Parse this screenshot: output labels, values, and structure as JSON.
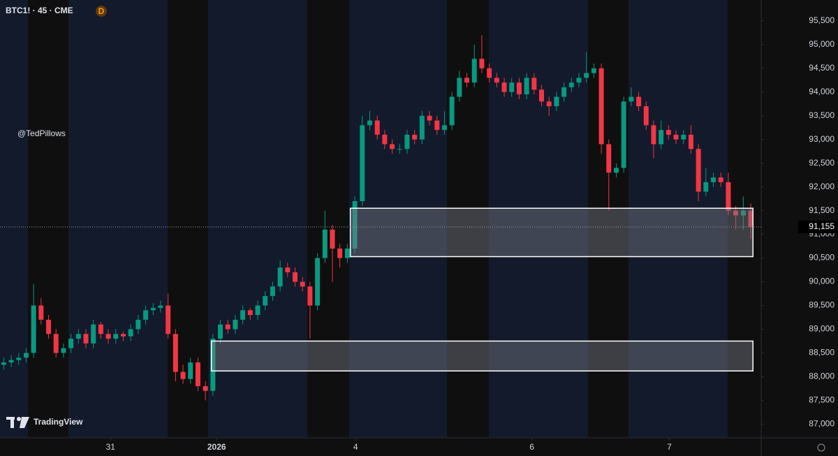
{
  "chart_data": {
    "type": "candlestick",
    "title": "BTC1! · 45 · CME",
    "badge": "D",
    "watermark": "@TedPillows",
    "brand": "TradingView",
    "up_color": "#089981",
    "down_color": "#f23645",
    "open": [
      88250,
      88300,
      88350,
      88400,
      88500,
      89500,
      89200,
      88900,
      88500,
      88600,
      88800,
      88900,
      88700,
      89100,
      88900,
      88800,
      88900,
      88850,
      89000,
      89200,
      89400,
      89450,
      89500,
      88900,
      88100,
      87950,
      88300,
      87800,
      87700,
      88800,
      89100,
      89000,
      89200,
      89400,
      89300,
      89500,
      89700,
      89900,
      90300,
      90200,
      90000,
      89900,
      89500,
      90500,
      91100,
      90700,
      90500,
      90700,
      91700,
      93300,
      93400,
      93100,
      92900,
      92800,
      92800,
      93100,
      93000,
      93500,
      93400,
      93200,
      93300,
      93900,
      94300,
      94200,
      94700,
      94500,
      94300,
      94200,
      94000,
      94200,
      93950,
      94300,
      94050,
      93800,
      93700,
      93900,
      94100,
      94200,
      94300,
      94400,
      94500,
      92900,
      92300,
      92400,
      93800,
      93900,
      93700,
      93300,
      92900,
      93200,
      93100,
      93000,
      93100,
      92800,
      91900,
      92100,
      92200,
      92100,
      91500,
      91400,
      91500
    ],
    "high": [
      88400,
      88450,
      88500,
      88600,
      89950,
      89650,
      89300,
      89000,
      88700,
      88900,
      89000,
      89000,
      89200,
      89150,
      89000,
      89000,
      88950,
      89100,
      89300,
      89500,
      89550,
      89600,
      89750,
      89000,
      88250,
      88400,
      88400,
      87900,
      88900,
      89200,
      89200,
      89300,
      89500,
      89450,
      89600,
      89800,
      90000,
      90450,
      90400,
      90300,
      90100,
      90000,
      90600,
      91500,
      91200,
      90800,
      90800,
      91800,
      93500,
      93600,
      93500,
      93200,
      93000,
      92900,
      93200,
      93200,
      93600,
      93600,
      93500,
      93600,
      94000,
      94450,
      94400,
      95000,
      95200,
      94600,
      94400,
      94300,
      94300,
      94300,
      94400,
      94400,
      94150,
      93900,
      94000,
      94200,
      94300,
      94400,
      94850,
      94600,
      94600,
      93000,
      92500,
      93900,
      94100,
      94000,
      93800,
      93400,
      93400,
      93300,
      93200,
      93200,
      93300,
      92900,
      92400,
      92300,
      92300,
      92300,
      91600,
      91800,
      91650
    ],
    "low": [
      88150,
      88200,
      88250,
      88300,
      88400,
      89100,
      88800,
      88400,
      88400,
      88500,
      88700,
      88600,
      88600,
      88800,
      88700,
      88700,
      88750,
      88750,
      88900,
      89100,
      89300,
      89350,
      88800,
      87900,
      87850,
      87850,
      87700,
      87500,
      87600,
      88700,
      88900,
      88900,
      89100,
      89200,
      89200,
      89400,
      89600,
      89800,
      90100,
      89900,
      89800,
      88800,
      89400,
      90400,
      90000,
      90300,
      90400,
      90600,
      91600,
      93200,
      93000,
      92800,
      92700,
      92700,
      92700,
      92900,
      92900,
      93300,
      93100,
      93100,
      93200,
      93800,
      94100,
      94100,
      94400,
      94200,
      94100,
      93900,
      93900,
      93850,
      93850,
      93950,
      93700,
      93500,
      93600,
      93800,
      94000,
      94100,
      94200,
      94300,
      92700,
      91500,
      92200,
      92300,
      93700,
      93600,
      93200,
      92600,
      92800,
      93000,
      92900,
      92900,
      92700,
      91700,
      91800,
      92000,
      92000,
      91400,
      91100,
      91100,
      90900
    ],
    "close": [
      88300,
      88350,
      88400,
      88500,
      89500,
      89200,
      88900,
      88500,
      88600,
      88800,
      88900,
      88700,
      89100,
      88900,
      88800,
      88900,
      88850,
      89000,
      89200,
      89400,
      89450,
      89500,
      88900,
      88100,
      87950,
      88300,
      87800,
      87700,
      88800,
      89100,
      89000,
      89200,
      89400,
      89300,
      89500,
      89700,
      89900,
      90300,
      90200,
      90000,
      89900,
      89500,
      90500,
      91100,
      90700,
      90500,
      90700,
      91700,
      93300,
      93400,
      93100,
      92900,
      92800,
      92800,
      93100,
      93000,
      93500,
      93400,
      93200,
      93300,
      93900,
      94300,
      94200,
      94700,
      94500,
      94300,
      94200,
      94000,
      94200,
      93950,
      94300,
      94050,
      93800,
      93700,
      93900,
      94100,
      94200,
      94300,
      94400,
      94500,
      92900,
      92300,
      92400,
      93800,
      93900,
      93700,
      93300,
      92900,
      93200,
      93100,
      93000,
      93100,
      92800,
      91900,
      92100,
      92200,
      92100,
      91500,
      91400,
      91500,
      91155
    ],
    "xlim": [
      -0.5,
      101.4
    ],
    "xticks": [
      {
        "value": 14.3,
        "label": "31"
      },
      {
        "value": 28.5,
        "label": "2026"
      },
      {
        "value": 47.1,
        "label": "4"
      },
      {
        "value": 70.7,
        "label": "6"
      },
      {
        "value": 89.1,
        "label": "7"
      }
    ],
    "ylim": [
      86710,
      95940
    ],
    "yticks": [
      {
        "value": 87000,
        "label": "87,000"
      },
      {
        "value": 87500,
        "label": "87,500"
      },
      {
        "value": 88000,
        "label": "88,000"
      },
      {
        "value": 88500,
        "label": "88,500"
      },
      {
        "value": 89000,
        "label": "89,000"
      },
      {
        "value": 89500,
        "label": "89,500"
      },
      {
        "value": 90000,
        "label": "90,000"
      },
      {
        "value": 90500,
        "label": "90,500"
      },
      {
        "value": 91000,
        "label": "91,000"
      },
      {
        "value": 91500,
        "label": "91,500"
      },
      {
        "value": 92000,
        "label": "92,000"
      },
      {
        "value": 92500,
        "label": "92,500"
      },
      {
        "value": 93000,
        "label": "93,000"
      },
      {
        "value": 93500,
        "label": "93,500"
      },
      {
        "value": 94000,
        "label": "94,000"
      },
      {
        "value": 94500,
        "label": "94,500"
      },
      {
        "value": 95000,
        "label": "95,000"
      },
      {
        "value": 95500,
        "label": "95,500"
      }
    ],
    "last_price": {
      "value": 91155,
      "label": "91,155"
    },
    "zones": [
      {
        "from": 27.8,
        "to": 100.3,
        "low": 88120,
        "high": 88750
      },
      {
        "from": 46.4,
        "to": 100.3,
        "low": 90530,
        "high": 91550
      }
    ]
  }
}
